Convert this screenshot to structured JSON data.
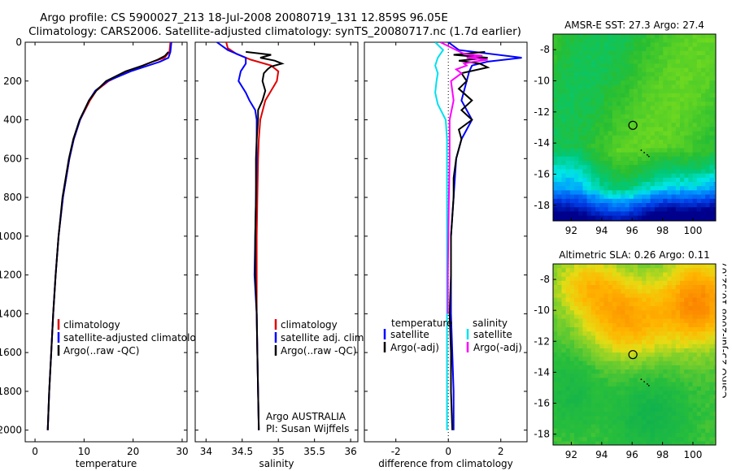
{
  "header": {
    "line1": "Argo profile: CS 5900027_213 18-Jul-2008 20080719_131 12.859S 96.05E",
    "line2": "Climatology: CARS2006. Satellite-adjusted climatology: synTS_20080717.nc (1.7d earlier)"
  },
  "footer_vertical": "CSIRO 25-Jul-2008 10:32:07",
  "colors": {
    "red": "#e00000",
    "blue": "#0000ff",
    "black": "#000000",
    "cyan": "#00e0f0",
    "magenta": "#ff00ff"
  },
  "chart_data": [
    {
      "id": "temperature",
      "type": "line",
      "xlabel": "temperature",
      "xlim": [
        -2,
        31
      ],
      "ylim": [
        2060,
        0
      ],
      "xticks": [
        "0",
        "10",
        "20",
        "30"
      ],
      "yticks": [
        "0",
        "200",
        "400",
        "600",
        "800",
        "1000",
        "1200",
        "1400",
        "1600",
        "1800",
        "2000"
      ],
      "legend": [
        "climatology",
        "satellite-adjusted climatology",
        "Argo(..raw -QC)"
      ],
      "series": [
        {
          "name": "climatology",
          "color": "red",
          "depth": [
            0,
            50,
            80,
            100,
            150,
            200,
            250,
            300,
            400,
            500,
            600,
            800,
            1000,
            1200,
            1400,
            1600,
            1800,
            2000
          ],
          "values": [
            27.6,
            27.4,
            26.4,
            24,
            19,
            15,
            12.5,
            11.2,
            9.2,
            7.9,
            7,
            5.7,
            4.8,
            4.2,
            3.7,
            3.3,
            2.9,
            2.6
          ]
        },
        {
          "name": "satellite-adjusted climatology",
          "color": "blue",
          "depth": [
            0,
            50,
            80,
            100,
            150,
            200,
            250,
            300,
            400,
            500,
            600,
            800,
            1000,
            1200,
            1400,
            1600,
            1800,
            2000
          ],
          "values": [
            27.8,
            27.6,
            27.2,
            25.5,
            19.5,
            14.8,
            12.3,
            11,
            9.2,
            7.9,
            7,
            5.7,
            4.8,
            4.2,
            3.7,
            3.3,
            2.9,
            2.6
          ]
        },
        {
          "name": "Argo(..raw -QC)",
          "color": "black",
          "depth": [
            50,
            70,
            90,
            120,
            150,
            200,
            250,
            300,
            400,
            500,
            600,
            800,
            1000,
            1200,
            1400,
            1600,
            1800,
            2000
          ],
          "values": [
            27.2,
            26.5,
            25,
            22,
            18.5,
            14.5,
            12.5,
            11,
            9.1,
            7.8,
            6.9,
            5.6,
            4.8,
            4.2,
            3.7,
            3.3,
            2.9,
            2.6
          ]
        }
      ]
    },
    {
      "id": "salinity",
      "type": "line",
      "xlabel": "salinity",
      "xlim": [
        33.85,
        36.1
      ],
      "ylim": [
        2060,
        0
      ],
      "xticks": [
        "34",
        "34.5",
        "35",
        "35.5",
        "36"
      ],
      "legend": [
        "climatology",
        "satellite adj. clim.",
        "Argo(..raw -QC)"
      ],
      "annotation": [
        "Argo AUSTRALIA",
        "PI: Susan Wijffels"
      ],
      "series": [
        {
          "name": "climatology",
          "color": "red",
          "depth": [
            0,
            30,
            60,
            90,
            120,
            150,
            200,
            250,
            300,
            400,
            500,
            600,
            800,
            1000,
            1200,
            1400,
            1600,
            1800,
            2000
          ],
          "values": [
            34.28,
            34.3,
            34.42,
            34.62,
            34.9,
            35.0,
            34.98,
            34.9,
            34.82,
            34.75,
            34.73,
            34.72,
            34.71,
            34.7,
            34.7,
            34.7,
            34.71,
            34.72,
            34.73
          ]
        },
        {
          "name": "satellite adj. clim.",
          "color": "blue",
          "depth": [
            0,
            40,
            80,
            110,
            150,
            200,
            260,
            300,
            350,
            400,
            500,
            600,
            800,
            1000,
            1200,
            1400,
            1600,
            1800,
            2000
          ],
          "values": [
            34.15,
            34.3,
            34.55,
            34.55,
            34.48,
            34.45,
            34.55,
            34.6,
            34.68,
            34.7,
            34.7,
            34.7,
            34.69,
            34.68,
            34.67,
            34.7,
            34.71,
            34.72,
            34.73
          ]
        },
        {
          "name": "Argo(..raw -QC)",
          "color": "black",
          "depth": [
            50,
            65,
            80,
            95,
            110,
            125,
            140,
            160,
            200,
            250,
            300,
            350,
            400,
            500,
            600,
            800,
            1000,
            1200,
            1400,
            1600,
            1800,
            2000
          ],
          "values": [
            34.55,
            34.9,
            34.75,
            34.95,
            35.05,
            34.9,
            34.85,
            34.8,
            34.78,
            34.82,
            34.78,
            34.72,
            34.72,
            34.7,
            34.69,
            34.69,
            34.68,
            34.68,
            34.7,
            34.71,
            34.72,
            34.73
          ]
        }
      ]
    },
    {
      "id": "difference",
      "type": "line",
      "xlabel": "difference from climatology",
      "xlim": [
        -3.2,
        3.0
      ],
      "ylim": [
        2060,
        0
      ],
      "xticks": [
        "-2",
        "0",
        "2"
      ],
      "legend_title_left": "temperature",
      "legend_title_right": "salinity",
      "legend_left": [
        "satellite",
        "Argo(-adj)"
      ],
      "legend_right": [
        "satellite",
        "Argo(-adj)"
      ],
      "series": [
        {
          "name": "temperature satellite",
          "color": "blue",
          "depth": [
            0,
            40,
            80,
            100,
            120,
            150,
            200,
            250,
            300,
            400,
            500,
            600,
            800,
            1000,
            1200,
            1400,
            1600,
            1800,
            2000
          ],
          "values": [
            0,
            0.4,
            2.8,
            1.5,
            0.9,
            0.8,
            0.7,
            0.6,
            0.5,
            0.9,
            0.5,
            0.3,
            0.2,
            0.1,
            0.1,
            0.1,
            0.15,
            0.2,
            0.2
          ]
        },
        {
          "name": "temperature Argo(-adj)",
          "color": "black",
          "depth": [
            50,
            65,
            80,
            95,
            110,
            130,
            160,
            200,
            240,
            300,
            350,
            400,
            450,
            500,
            600,
            700,
            800,
            1000,
            1200,
            1400,
            1600,
            1800,
            2000
          ],
          "values": [
            1.4,
            0.2,
            1.5,
            0.4,
            1.2,
            1.5,
            0.5,
            0.7,
            0.4,
            0.9,
            0.5,
            0.9,
            0.4,
            0.5,
            0.3,
            0.2,
            0.2,
            0.1,
            0.1,
            0.05,
            0.1,
            0.1,
            0.15
          ]
        },
        {
          "name": "salinity satellite",
          "color": "cyan",
          "depth": [
            0,
            40,
            80,
            120,
            160,
            200,
            260,
            320,
            400,
            500,
            600,
            800,
            1000,
            1200,
            1400,
            1600,
            1800,
            2000
          ],
          "values": [
            -0.5,
            -0.2,
            -0.4,
            -0.5,
            -0.4,
            -0.45,
            -0.5,
            -0.4,
            -0.1,
            -0.05,
            -0.05,
            -0.05,
            -0.05,
            -0.05,
            -0.05,
            -0.05,
            -0.05,
            -0.05
          ]
        },
        {
          "name": "salinity Argo(-adj)",
          "color": "magenta",
          "depth": [
            0,
            40,
            60,
            70,
            80,
            90,
            100,
            110,
            120,
            140,
            160,
            200,
            250,
            300,
            400,
            500,
            600,
            800,
            1000,
            1200,
            1400
          ],
          "values": [
            -0.3,
            0.3,
            0.6,
            1.3,
            0.7,
            1.5,
            1.0,
            0.6,
            0.7,
            0.3,
            0.5,
            0.1,
            0.15,
            0.2,
            0.05,
            0.05,
            0.05,
            0.02,
            0,
            -0.02,
            -0.02
          ]
        }
      ]
    },
    {
      "id": "sst_map",
      "type": "heatmap",
      "title": "AMSR-E SST: 27.3  Argo: 27.4",
      "xlim": [
        90.8,
        101.5
      ],
      "ylim": [
        -19.0,
        -7.0
      ],
      "xticks": [
        "92",
        "94",
        "96",
        "98",
        "100"
      ],
      "yticks": [
        "-8",
        "-10",
        "-12",
        "-14",
        "-16",
        "-18"
      ],
      "float_position": [
        96.05,
        -12.859
      ]
    },
    {
      "id": "sla_map",
      "type": "heatmap",
      "title": "Altimetric SLA: 0.26  Argo: 0.11",
      "xlim": [
        90.8,
        101.5
      ],
      "ylim": [
        -18.7,
        -7.0
      ],
      "xticks": [
        "92",
        "94",
        "96",
        "98",
        "100"
      ],
      "yticks": [
        "-8",
        "-10",
        "-12",
        "-14",
        "-16",
        "-18"
      ],
      "float_position": [
        96.05,
        -12.859
      ]
    }
  ]
}
